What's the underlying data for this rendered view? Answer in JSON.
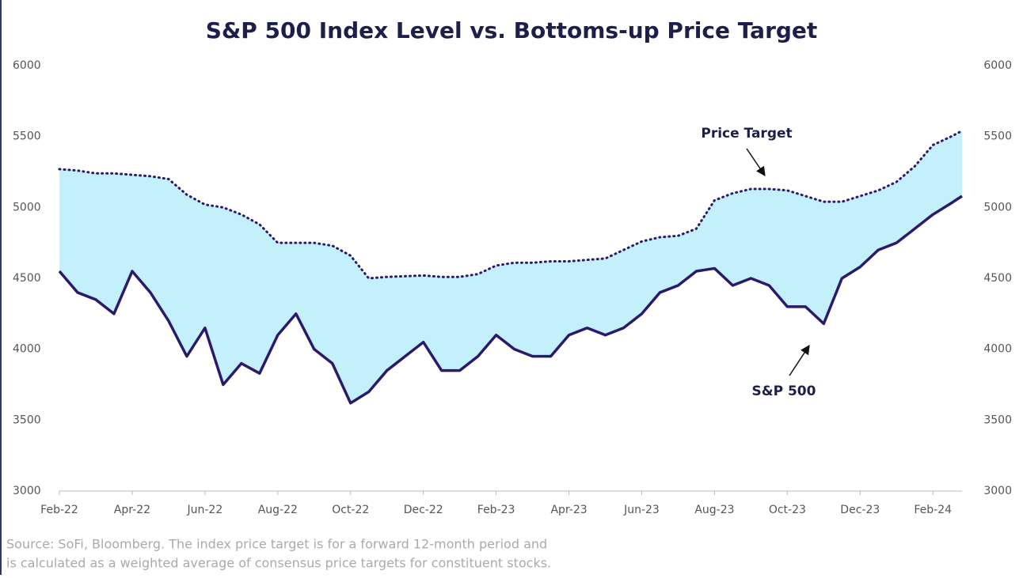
{
  "chart_data": {
    "type": "line",
    "title": "S&P 500 Index Level vs. Bottoms-up Price Target",
    "x": [
      0,
      0.5,
      1,
      1.5,
      2,
      2.5,
      3,
      3.5,
      4,
      4.5,
      5,
      5.5,
      6,
      6.5,
      7,
      7.5,
      8,
      8.5,
      9,
      9.5,
      10,
      10.5,
      11,
      11.5,
      12,
      12.5,
      13,
      13.5,
      14,
      14.5,
      15,
      15.5,
      16,
      16.5,
      17,
      17.5,
      18,
      18.5,
      19,
      19.5,
      20,
      20.5,
      21,
      21.5,
      22,
      22.5,
      23,
      23.5,
      24,
      24.5,
      24.8
    ],
    "xlim": [
      0,
      24.8
    ],
    "xticks": [
      {
        "value": 0,
        "label": "Feb-22"
      },
      {
        "value": 2,
        "label": "Apr-22"
      },
      {
        "value": 4,
        "label": "Jun-22"
      },
      {
        "value": 6,
        "label": "Aug-22"
      },
      {
        "value": 8,
        "label": "Oct-22"
      },
      {
        "value": 10,
        "label": "Dec-22"
      },
      {
        "value": 12,
        "label": "Feb-23"
      },
      {
        "value": 14,
        "label": "Apr-23"
      },
      {
        "value": 16,
        "label": "Jun-23"
      },
      {
        "value": 18,
        "label": "Aug-23"
      },
      {
        "value": 20,
        "label": "Oct-23"
      },
      {
        "value": 22,
        "label": "Dec-23"
      },
      {
        "value": 24,
        "label": "Feb-24"
      }
    ],
    "ylim": [
      3000,
      6000
    ],
    "yticks": [
      3000,
      3500,
      4000,
      4500,
      5000,
      5500,
      6000
    ],
    "y2lim": [
      3000,
      6000
    ],
    "y2ticks": [
      3000,
      3500,
      4000,
      4500,
      5000,
      5500,
      6000
    ],
    "fill_between": "#c3f0fb",
    "series": [
      {
        "name": "S&P 500",
        "color": "#2b1a6b",
        "style": "solid",
        "values": [
          4550,
          4400,
          4350,
          4250,
          4550,
          4400,
          4200,
          3950,
          4150,
          3750,
          3900,
          3830,
          4100,
          4250,
          4000,
          3900,
          3620,
          3700,
          3850,
          3950,
          4050,
          3850,
          3850,
          3950,
          4100,
          4000,
          3950,
          3950,
          4100,
          4150,
          4100,
          4150,
          4250,
          4400,
          4450,
          4550,
          4570,
          4450,
          4500,
          4450,
          4300,
          4300,
          4180,
          4500,
          4580,
          4700,
          4750,
          4850,
          4950,
          5030,
          5080
        ]
      },
      {
        "name": "Price Target",
        "color": "#2b1a6b",
        "style": "dotted",
        "values": [
          5270,
          5260,
          5240,
          5240,
          5230,
          5220,
          5200,
          5090,
          5020,
          5000,
          4950,
          4880,
          4750,
          4750,
          4750,
          4730,
          4660,
          4500,
          4510,
          4515,
          4520,
          4510,
          4510,
          4530,
          4590,
          4610,
          4610,
          4620,
          4620,
          4630,
          4640,
          4700,
          4760,
          4790,
          4800,
          4850,
          5050,
          5100,
          5130,
          5130,
          5120,
          5080,
          5040,
          5040,
          5080,
          5120,
          5180,
          5290,
          5440,
          5500,
          5540
        ]
      }
    ],
    "source": "Source: SoFi, Bloomberg. The index price target is for a forward 12-month period and",
    "source_line2": "is calculated as a weighted average of consensus price targets for constituent stocks."
  }
}
